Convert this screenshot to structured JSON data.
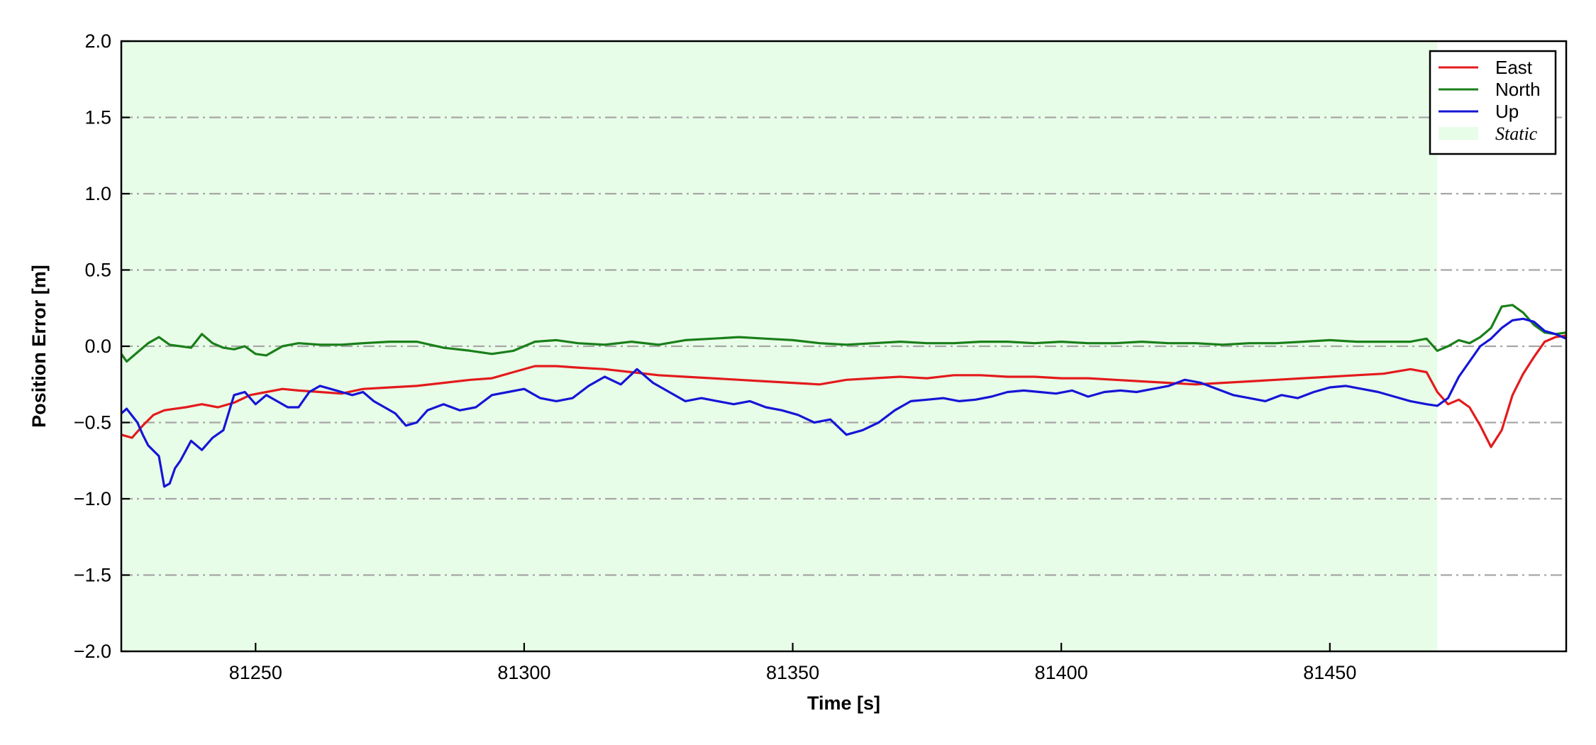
{
  "chart_data": {
    "type": "line",
    "title": "",
    "xlabel": "Time [s]",
    "ylabel": "Position Error [m]",
    "xlim": [
      81225,
      81494
    ],
    "ylim": [
      -2.0,
      2.0
    ],
    "x_ticks": [
      81250,
      81300,
      81350,
      81400,
      81450
    ],
    "y_ticks": [
      -2.0,
      -1.5,
      -1.0,
      -0.5,
      0.0,
      0.5,
      1.0,
      1.5,
      2.0
    ],
    "y_tick_labels": [
      "−2.0",
      "−1.5",
      "−1.0",
      "−0.5",
      "0.0",
      "0.5",
      "1.0",
      "1.5",
      "2.0"
    ],
    "grid": "horizontal dash-dot",
    "legend_position": "top-right",
    "static_region": {
      "name": "Static",
      "x_start": 81225,
      "x_end": 81470,
      "color": "#e8fde8"
    },
    "series": [
      {
        "name": "East",
        "color": "#e31a1c",
        "x": [
          81225,
          81227,
          81229,
          81231,
          81233,
          81235,
          81237,
          81240,
          81243,
          81246,
          81249,
          81252,
          81255,
          81258,
          81262,
          81266,
          81270,
          81275,
          81280,
          81285,
          81290,
          81294,
          81298,
          81302,
          81306,
          81310,
          81315,
          81320,
          81325,
          81330,
          81335,
          81340,
          81345,
          81350,
          81355,
          81360,
          81365,
          81370,
          81375,
          81380,
          81385,
          81390,
          81395,
          81400,
          81405,
          81410,
          81415,
          81420,
          81425,
          81430,
          81435,
          81440,
          81445,
          81450,
          81455,
          81460,
          81465,
          81468,
          81470,
          81472,
          81474,
          81476,
          81478,
          81480,
          81482,
          81484,
          81486,
          81488,
          81490,
          81492,
          81494
        ],
        "y": [
          -0.58,
          -0.6,
          -0.52,
          -0.45,
          -0.42,
          -0.41,
          -0.4,
          -0.38,
          -0.4,
          -0.37,
          -0.32,
          -0.3,
          -0.28,
          -0.29,
          -0.3,
          -0.31,
          -0.28,
          -0.27,
          -0.26,
          -0.24,
          -0.22,
          -0.21,
          -0.17,
          -0.13,
          -0.13,
          -0.14,
          -0.15,
          -0.17,
          -0.19,
          -0.2,
          -0.21,
          -0.22,
          -0.23,
          -0.24,
          -0.25,
          -0.22,
          -0.21,
          -0.2,
          -0.21,
          -0.19,
          -0.19,
          -0.2,
          -0.2,
          -0.21,
          -0.21,
          -0.22,
          -0.23,
          -0.24,
          -0.25,
          -0.24,
          -0.23,
          -0.22,
          -0.21,
          -0.2,
          -0.19,
          -0.18,
          -0.15,
          -0.17,
          -0.3,
          -0.38,
          -0.35,
          -0.4,
          -0.52,
          -0.66,
          -0.55,
          -0.32,
          -0.18,
          -0.07,
          0.03,
          0.06,
          0.07
        ]
      },
      {
        "name": "North",
        "color": "#1a7f1a",
        "x": [
          81225,
          81226,
          81228,
          81230,
          81232,
          81234,
          81236,
          81238,
          81240,
          81242,
          81244,
          81246,
          81248,
          81250,
          81252,
          81255,
          81258,
          81262,
          81266,
          81270,
          81275,
          81280,
          81285,
          81290,
          81294,
          81298,
          81302,
          81306,
          81310,
          81315,
          81320,
          81325,
          81330,
          81335,
          81340,
          81345,
          81350,
          81355,
          81360,
          81365,
          81370,
          81375,
          81380,
          81385,
          81390,
          81395,
          81400,
          81405,
          81410,
          81415,
          81420,
          81425,
          81430,
          81435,
          81440,
          81445,
          81450,
          81455,
          81460,
          81465,
          81468,
          81470,
          81472,
          81474,
          81476,
          81478,
          81480,
          81482,
          81484,
          81486,
          81488,
          81490,
          81492,
          81494
        ],
        "y": [
          -0.05,
          -0.1,
          -0.04,
          0.02,
          0.06,
          0.01,
          0.0,
          -0.01,
          0.08,
          0.02,
          -0.01,
          -0.02,
          0.0,
          -0.05,
          -0.06,
          0.0,
          0.02,
          0.01,
          0.01,
          0.02,
          0.03,
          0.03,
          -0.01,
          -0.03,
          -0.05,
          -0.03,
          0.03,
          0.04,
          0.02,
          0.01,
          0.03,
          0.01,
          0.04,
          0.05,
          0.06,
          0.05,
          0.04,
          0.02,
          0.01,
          0.02,
          0.03,
          0.02,
          0.02,
          0.03,
          0.03,
          0.02,
          0.03,
          0.02,
          0.02,
          0.03,
          0.02,
          0.02,
          0.01,
          0.02,
          0.02,
          0.03,
          0.04,
          0.03,
          0.03,
          0.03,
          0.05,
          -0.03,
          0.0,
          0.04,
          0.02,
          0.06,
          0.12,
          0.26,
          0.27,
          0.22,
          0.14,
          0.09,
          0.08,
          0.09
        ]
      },
      {
        "name": "Up",
        "color": "#1515d6",
        "x": [
          81225,
          81226,
          81228,
          81229,
          81230,
          81232,
          81233,
          81234,
          81235,
          81236,
          81238,
          81240,
          81242,
          81244,
          81246,
          81248,
          81250,
          81252,
          81254,
          81256,
          81258,
          81260,
          81262,
          81264,
          81266,
          81268,
          81270,
          81272,
          81274,
          81276,
          81278,
          81280,
          81282,
          81285,
          81288,
          81291,
          81294,
          81297,
          81300,
          81303,
          81306,
          81309,
          81312,
          81315,
          81318,
          81321,
          81324,
          81327,
          81330,
          81333,
          81336,
          81339,
          81342,
          81345,
          81348,
          81351,
          81354,
          81357,
          81360,
          81363,
          81366,
          81369,
          81372,
          81375,
          81378,
          81381,
          81384,
          81387,
          81390,
          81393,
          81396,
          81399,
          81402,
          81405,
          81408,
          81411,
          81414,
          81417,
          81420,
          81423,
          81426,
          81429,
          81432,
          81435,
          81438,
          81441,
          81444,
          81447,
          81450,
          81453,
          81456,
          81459,
          81462,
          81465,
          81468,
          81470,
          81472,
          81474,
          81476,
          81478,
          81480,
          81482,
          81484,
          81486,
          81488,
          81490,
          81492,
          81494
        ],
        "y": [
          -0.44,
          -0.41,
          -0.5,
          -0.58,
          -0.65,
          -0.72,
          -0.92,
          -0.9,
          -0.8,
          -0.75,
          -0.62,
          -0.68,
          -0.6,
          -0.55,
          -0.32,
          -0.3,
          -0.38,
          -0.32,
          -0.36,
          -0.4,
          -0.4,
          -0.3,
          -0.26,
          -0.28,
          -0.3,
          -0.32,
          -0.3,
          -0.36,
          -0.4,
          -0.44,
          -0.52,
          -0.5,
          -0.42,
          -0.38,
          -0.42,
          -0.4,
          -0.32,
          -0.3,
          -0.28,
          -0.34,
          -0.36,
          -0.34,
          -0.26,
          -0.2,
          -0.25,
          -0.15,
          -0.24,
          -0.3,
          -0.36,
          -0.34,
          -0.36,
          -0.38,
          -0.36,
          -0.4,
          -0.42,
          -0.45,
          -0.5,
          -0.48,
          -0.58,
          -0.55,
          -0.5,
          -0.42,
          -0.36,
          -0.35,
          -0.34,
          -0.36,
          -0.35,
          -0.33,
          -0.3,
          -0.29,
          -0.3,
          -0.31,
          -0.29,
          -0.33,
          -0.3,
          -0.29,
          -0.3,
          -0.28,
          -0.26,
          -0.22,
          -0.24,
          -0.28,
          -0.32,
          -0.34,
          -0.36,
          -0.32,
          -0.34,
          -0.3,
          -0.27,
          -0.26,
          -0.28,
          -0.3,
          -0.33,
          -0.36,
          -0.38,
          -0.39,
          -0.34,
          -0.2,
          -0.1,
          0.0,
          0.05,
          0.12,
          0.17,
          0.18,
          0.16,
          0.1,
          0.08,
          0.05
        ]
      }
    ]
  }
}
